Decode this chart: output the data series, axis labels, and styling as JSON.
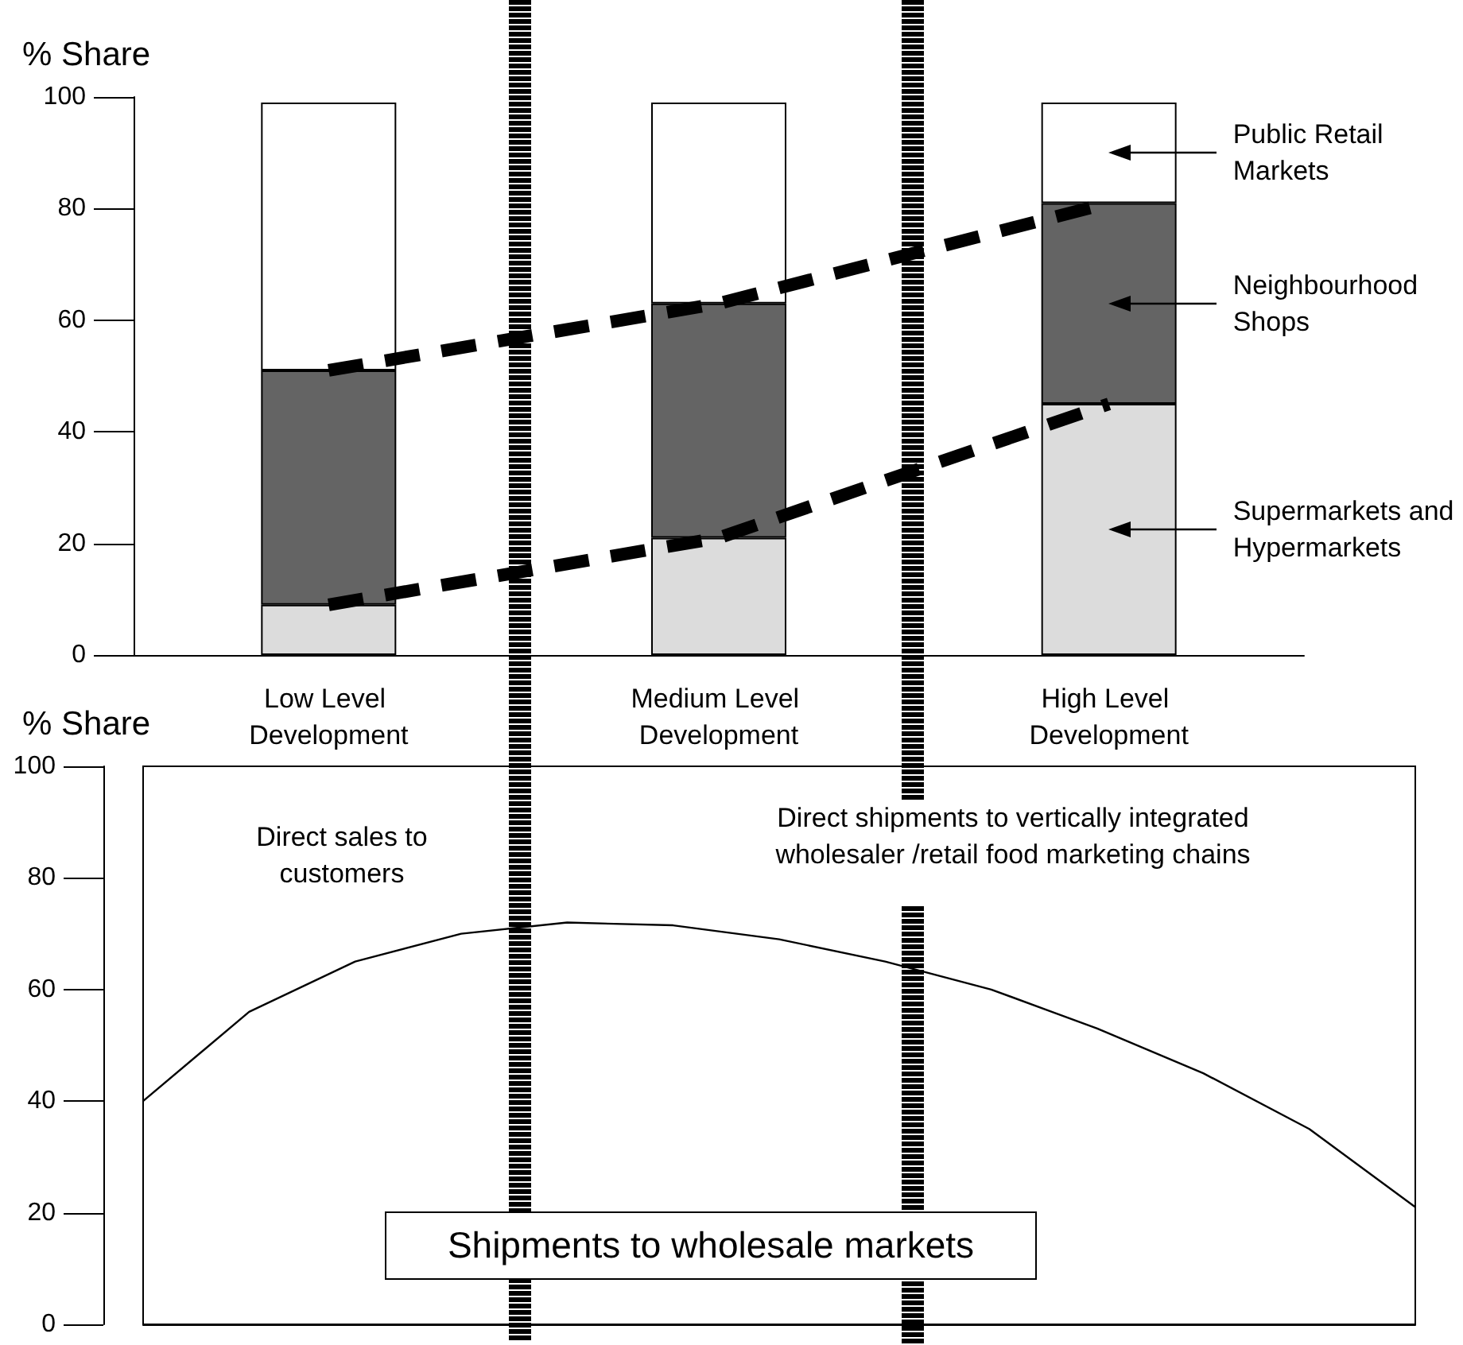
{
  "chart_data": [
    {
      "type": "bar",
      "ylabel": "% Share",
      "stacked": true,
      "categories": [
        "Low Level Development",
        "Medium Level Development",
        "High Level Development"
      ],
      "series": [
        {
          "name": "Supermarkets and Hypermarkets",
          "color": "#dcdcdc",
          "values": [
            9,
            21,
            45
          ]
        },
        {
          "name": "Neighbourhood Shops",
          "color": "#646464",
          "values": [
            42,
            42,
            36
          ]
        },
        {
          "name": "Public Retail Markets",
          "color": "#ffffff",
          "values": [
            48,
            36,
            18
          ]
        },
        {
          "type": "line",
          "color": "#000000",
          "line_style": "dashed",
          "values": [
            51,
            63,
            81
          ]
        },
        {
          "type": "line",
          "color": "#000000",
          "line_style": "dashed",
          "values": [
            9,
            21,
            45
          ]
        }
      ],
      "ylim": [
        0,
        100
      ],
      "yticks": [
        0,
        20,
        40,
        60,
        80,
        100
      ],
      "grid": false,
      "legend": "right"
    },
    {
      "type": "line",
      "ylabel": "% Share",
      "color": "#000000",
      "marker": "none",
      "categories": [
        null,
        null,
        null,
        null,
        null,
        null,
        null,
        null,
        null,
        null,
        null,
        null,
        null
      ],
      "values": [
        40,
        56,
        65,
        70,
        72,
        71.5,
        69,
        65,
        60,
        53,
        45,
        35,
        21
      ],
      "ylim": [
        0,
        100
      ],
      "yticks": [
        0,
        20,
        40,
        60,
        80,
        100
      ],
      "grid": false,
      "legend": false,
      "annotations": [
        "Direct sales to customers",
        "Direct shipments to vertically integrated wholesaler /retail food marketing chains",
        "Shipments to wholesale markets"
      ]
    }
  ]
}
